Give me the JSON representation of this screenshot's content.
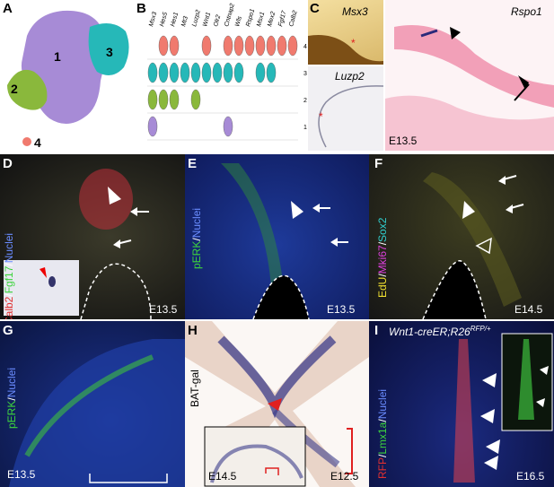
{
  "panels": {
    "A": {
      "label": "A",
      "clusters": [
        "1",
        "2",
        "3",
        "4"
      ]
    },
    "B": {
      "label": "B",
      "genes": [
        "Msx3",
        "Hes5",
        "Hes1",
        "Mt3",
        "Luzp2",
        "Wnt1",
        "Olr2",
        "Cntnap2",
        "Wls",
        "Rspo1",
        "Msx1",
        "Mex2",
        "Fgf17",
        "Calb2"
      ],
      "rows": [
        "4",
        "3",
        "2",
        "1"
      ]
    },
    "C": {
      "label": "C",
      "msx3": "Msx3",
      "luzp2": "Luzp2",
      "rspo1": "Rspo1",
      "stage": "E13.5"
    },
    "D": {
      "label": "D",
      "markers": [
        "Calb2",
        "/",
        "Fgf17",
        "/",
        "Nuclei"
      ],
      "stage": "E13.5"
    },
    "E": {
      "label": "E",
      "markers": [
        "pERK",
        "/",
        "Nuclei"
      ],
      "stage": "E13.5"
    },
    "F": {
      "label": "F",
      "markers": [
        "EdU",
        "/",
        "Mki67",
        "/",
        "Sox2"
      ],
      "stage": "E14.5"
    },
    "G": {
      "label": "G",
      "markers": [
        "pERK",
        "/",
        "Nuclei"
      ],
      "stage": "E13.5"
    },
    "H": {
      "label": "H",
      "marker": "BAT-gal",
      "stage_inset": "E14.5",
      "stage": "E12.5"
    },
    "I": {
      "label": "I",
      "title_a": "Wnt1-creER;R26",
      "title_sup": "RFP/+",
      "markers": [
        "RFP",
        "/",
        "Lmx1a",
        "/",
        "Nuclei"
      ],
      "stage": "E16.5"
    }
  },
  "colors": {
    "cluster1": "#a78bd6",
    "cluster2": "#8ab83c",
    "cluster3": "#26b8b8",
    "cluster4": "#f07a6e"
  }
}
